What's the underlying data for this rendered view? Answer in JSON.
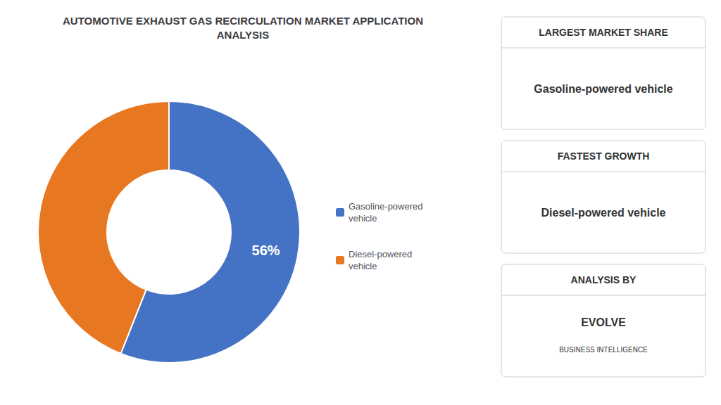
{
  "chart_data": {
    "type": "pie",
    "title": "AUTOMOTIVE EXHAUST GAS RECIRCULATION MARKET APPLICATION\nANALYSIS",
    "categories": [
      "Gasoline-powered\nvehicle",
      "Diesel-powered\nvehicle"
    ],
    "values": [
      56,
      44
    ],
    "value_labels": [
      "56%",
      null
    ],
    "data_labels": true,
    "colors": [
      "#4472C4",
      "#E87722"
    ],
    "legend": "right",
    "annotations": [
      {
        "header": "LARGEST MARKET SHARE",
        "lines": [
          "Gasoline-powered vehicle"
        ]
      },
      {
        "header": "FASTEST GROWTH",
        "lines": [
          "Diesel-powered vehicle"
        ]
      },
      {
        "header": "ANALYSIS BY",
        "lines": [
          "EVOLVE",
          "BUSINESS INTELLIGENCE"
        ]
      }
    ]
  }
}
